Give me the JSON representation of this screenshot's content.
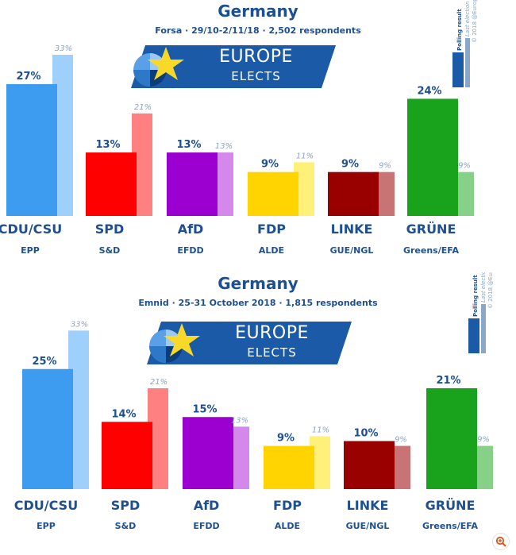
{
  "colors": {
    "title": "#1d4f91",
    "banner": "#1b5aa6",
    "star": "#f8d92a"
  },
  "banner": {
    "line1": "EUROPE",
    "line2": "ELECTS"
  },
  "legend": {
    "poll": "Polling result",
    "election": "Last election result",
    "credit": "© 2018 @EuropeElects"
  },
  "icons": [
    "europe-elects-logo-icon",
    "zoom-icon"
  ],
  "chart_data": [
    {
      "type": "bar",
      "title": "Germany",
      "subtitle": "Forsa · 29/10-2/11/18 · 2,502 respondents",
      "categories": [
        "CDU/CSU",
        "SPD",
        "AfD",
        "FDP",
        "LINKE",
        "GRÜNE"
      ],
      "groups": [
        "EPP",
        "S&D",
        "EFDD",
        "ALDE",
        "GUE/NGL",
        "Greens/EFA"
      ],
      "series": [
        {
          "name": "Polling result",
          "values": [
            27,
            13,
            13,
            9,
            9,
            24
          ],
          "labels": [
            "27%",
            "13%",
            "13%",
            "9%",
            "9%",
            "24%"
          ]
        },
        {
          "name": "Last election result",
          "values": [
            33,
            21,
            13,
            11,
            9,
            9
          ],
          "labels": [
            "33%",
            "21%",
            "13%",
            "11%",
            "9%",
            "9%"
          ]
        }
      ],
      "colors": [
        "#3d9bf0",
        "#ff0000",
        "#9b00d1",
        "#ffd400",
        "#990000",
        "#19a31c"
      ],
      "colors_light": [
        "#9ed0fb",
        "#ff8080",
        "#d488ec",
        "#fff07a",
        "#c87474",
        "#86d088"
      ],
      "ylim": [
        0,
        36
      ],
      "legend_position": "top-right"
    },
    {
      "type": "bar",
      "title": "Germany",
      "subtitle": "Emnid · 25-31 October 2018 · 1,815 respondents",
      "categories": [
        "CDU/CSU",
        "SPD",
        "AfD",
        "FDP",
        "LINKE",
        "GRÜNE"
      ],
      "groups": [
        "EPP",
        "S&D",
        "EFDD",
        "ALDE",
        "GUE/NGL",
        "Greens/EFA"
      ],
      "series": [
        {
          "name": "Polling result",
          "values": [
            25,
            14,
            15,
            9,
            10,
            21
          ],
          "labels": [
            "25%",
            "14%",
            "15%",
            "9%",
            "10%",
            "21%"
          ]
        },
        {
          "name": "Last election result",
          "values": [
            33,
            21,
            13,
            11,
            9,
            9
          ],
          "labels": [
            "33%",
            "21%",
            "13%",
            "11%",
            "9%",
            "9%"
          ]
        }
      ],
      "colors": [
        "#3d9bf0",
        "#ff0000",
        "#9b00d1",
        "#ffd400",
        "#990000",
        "#19a31c"
      ],
      "colors_light": [
        "#9ed0fb",
        "#ff8080",
        "#d488ec",
        "#fff07a",
        "#c87474",
        "#86d088"
      ],
      "ylim": [
        0,
        36
      ],
      "legend_position": "top-right"
    }
  ]
}
